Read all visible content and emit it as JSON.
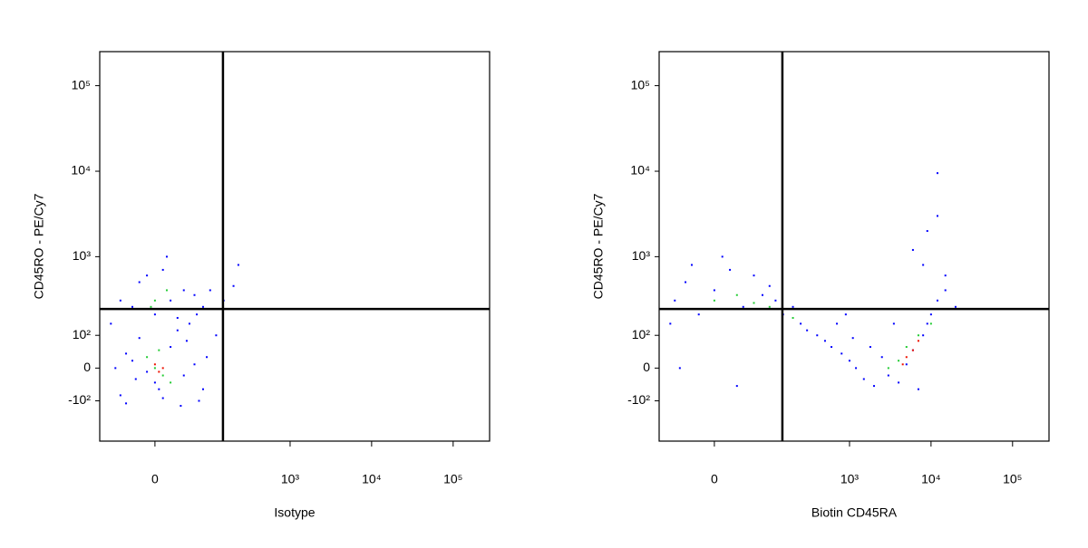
{
  "chart_data": [
    {
      "type": "scatter",
      "xlabel": "Isotype",
      "ylabel": "CD45RO - PE/Cy7",
      "xlim": [
        -100,
        280000
      ],
      "ylim": [
        -350,
        250000
      ],
      "xticks": [
        0,
        {
          "value": 1000,
          "label": "10³"
        },
        {
          "value": 10000,
          "label": "10⁴"
        },
        {
          "value": 100000,
          "label": "10⁵"
        }
      ],
      "yticks": [
        {
          "value": -100,
          "label": "-10²"
        },
        0,
        {
          "value": 100,
          "label": "10²"
        },
        {
          "value": 1000,
          "label": "10³"
        },
        {
          "value": 10000,
          "label": "10⁴"
        },
        {
          "value": 100000,
          "label": "10⁵"
        }
      ],
      "gate": {
        "x": 147,
        "y": 235
      },
      "series": [
        {
          "color": "#0000ff",
          "x": [
            -50,
            -30,
            0,
            20,
            40,
            60,
            -20,
            10,
            80,
            -40,
            30,
            -10,
            50,
            70,
            -60,
            90,
            0,
            -30,
            20,
            40,
            -20,
            60,
            10,
            -50,
            80,
            30,
            -10,
            100,
            150,
            200,
            -40,
            5,
            45,
            -25,
            65,
            120,
            230,
            15,
            -70,
            35
          ],
          "y": [
            -80,
            20,
            -40,
            60,
            -20,
            10,
            90,
            -90,
            -60,
            40,
            120,
            -10,
            150,
            -100,
            0,
            30,
            200,
            250,
            300,
            400,
            500,
            350,
            700,
            300,
            250,
            180,
            600,
            400,
            300,
            450,
            -110,
            -60,
            80,
            -30,
            200,
            100,
            800,
            1000,
            150,
            -120
          ]
        },
        {
          "color": "#22cc33",
          "x": [
            0,
            10,
            -10,
            5,
            20,
            0,
            15,
            -5
          ],
          "y": [
            0,
            -20,
            30,
            50,
            -40,
            300,
            400,
            250
          ]
        },
        {
          "color": "#ee1100",
          "x": [
            5,
            0,
            10
          ],
          "y": [
            -10,
            10,
            0
          ]
        }
      ]
    },
    {
      "type": "scatter",
      "xlabel": "Biotin CD45RA",
      "ylabel": "CD45RO - PE/Cy7",
      "xlim": [
        -100,
        280000
      ],
      "ylim": [
        -350,
        250000
      ],
      "xticks": [
        0,
        {
          "value": 1000,
          "label": "10³"
        },
        {
          "value": 10000,
          "label": "10⁴"
        },
        {
          "value": 100000,
          "label": "10⁵"
        }
      ],
      "yticks": [
        {
          "value": -100,
          "label": "-10²"
        },
        0,
        {
          "value": 100,
          "label": "10²"
        },
        {
          "value": 1000,
          "label": "10³"
        },
        {
          "value": 10000,
          "label": "10⁴"
        },
        {
          "value": 100000,
          "label": "10⁵"
        }
      ],
      "gate": {
        "x": 147,
        "y": 235
      },
      "series": [
        {
          "color": "#0000ff",
          "x": [
            -60,
            -40,
            -20,
            0,
            20,
            40,
            60,
            80,
            100,
            -70,
            -30,
            10,
            30,
            -50,
            120,
            150,
            200,
            250,
            300,
            400,
            500,
            600,
            800,
            1000,
            1200,
            1500,
            2000,
            700,
            900,
            1100,
            1800,
            3000,
            4000,
            5000,
            6000,
            7000,
            8000,
            9000,
            10000,
            12000,
            15000,
            20000,
            8000,
            9000,
            12000,
            12000,
            15000,
            3500,
            2500,
            6000
          ],
          "y": [
            300,
            500,
            200,
            400,
            700,
            250,
            600,
            350,
            450,
            150,
            800,
            1000,
            -50,
            0,
            300,
            200,
            250,
            150,
            120,
            100,
            80,
            60,
            40,
            20,
            0,
            -30,
            -50,
            150,
            200,
            90,
            60,
            -20,
            -40,
            10,
            50,
            -60,
            100,
            150,
            200,
            300,
            400,
            250,
            800,
            2000,
            3000,
            9500,
            600,
            150,
            30,
            1200
          ]
        },
        {
          "color": "#22cc33",
          "x": [
            0,
            30,
            60,
            100,
            200,
            4000,
            5000,
            7000,
            10000,
            3000
          ],
          "y": [
            300,
            350,
            280,
            250,
            180,
            20,
            60,
            100,
            150,
            0
          ]
        },
        {
          "color": "#ee1100",
          "x": [
            5000,
            6000,
            7000,
            4500
          ],
          "y": [
            30,
            50,
            80,
            10
          ]
        }
      ]
    }
  ]
}
